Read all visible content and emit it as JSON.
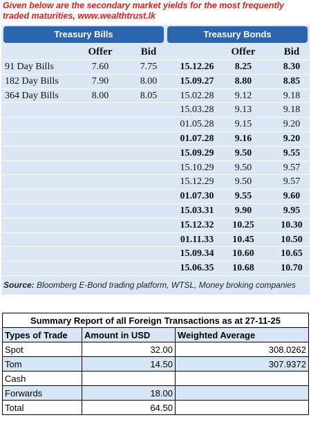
{
  "header": {
    "text": "Given below are the secondary market yields for the most frequently traded maturities, www.wealthtrust.lk"
  },
  "bills": {
    "title": "Treasury Bills",
    "columns": [
      "Offer",
      "Bid"
    ],
    "rows": [
      [
        "91 Day Bills",
        "7.60",
        "7.75"
      ],
      [
        "182 Day Bills",
        "7.90",
        "8.00"
      ],
      [
        "364 Day Bills",
        "8.00",
        "8.05"
      ]
    ]
  },
  "bonds": {
    "title": "Treasury Bonds",
    "columns": [
      "Offer",
      "Bid"
    ],
    "rows": [
      {
        "maturity": "15.12.26",
        "offer": "8.25",
        "bid": "8.30",
        "bold": true
      },
      {
        "maturity": "15.09.27",
        "offer": "8.80",
        "bid": "8.85",
        "bold": true
      },
      {
        "maturity": "15.02.28",
        "offer": "9.12",
        "bid": "9.18",
        "bold": false
      },
      {
        "maturity": "15.03.28",
        "offer": "9.13",
        "bid": "9.18",
        "bold": false
      },
      {
        "maturity": "01.05.28",
        "offer": "9.15",
        "bid": "9.20",
        "bold": false
      },
      {
        "maturity": "01.07.28",
        "offer": "9.16",
        "bid": "9.20",
        "bold": true
      },
      {
        "maturity": "15.09.29",
        "offer": "9.50",
        "bid": "9.55",
        "bold": true
      },
      {
        "maturity": "15.10.29",
        "offer": "9.50",
        "bid": "9.57",
        "bold": false
      },
      {
        "maturity": "15.12.29",
        "offer": "9.50",
        "bid": "9.57",
        "bold": false
      },
      {
        "maturity": "01.07.30",
        "offer": "9.55",
        "bid": "9.60",
        "bold": true
      },
      {
        "maturity": "15.03.31",
        "offer": "9.90",
        "bid": "9.95",
        "bold": true
      },
      {
        "maturity": "15.12.32",
        "offer": "10.25",
        "bid": "10.30",
        "bold": true
      },
      {
        "maturity": "01.11.33",
        "offer": "10.45",
        "bid": "10.50",
        "bold": true
      },
      {
        "maturity": "15.09.34",
        "offer": "10.60",
        "bid": "10.65",
        "bold": true
      },
      {
        "maturity": "15.06.35",
        "offer": "10.68",
        "bid": "10.70",
        "bold": true
      }
    ]
  },
  "source": {
    "label": "Source:",
    "text": "Bloomberg E-Bond trading platform, WTSL, Money broking companies"
  },
  "summary": {
    "title": "Summary Report of all Foreign Transactions as at 27-11-25",
    "columns": [
      "Types of Trade",
      "Amount in USD",
      "Weighted Average"
    ],
    "rows": [
      [
        "Spot",
        "32.00",
        "308.0262"
      ],
      [
        "Tom",
        "14.50",
        "307.9372"
      ],
      [
        "Cash",
        null,
        null
      ],
      [
        "Forwards",
        "18.00",
        null
      ],
      [
        "Total",
        "64.50",
        null
      ]
    ]
  }
}
